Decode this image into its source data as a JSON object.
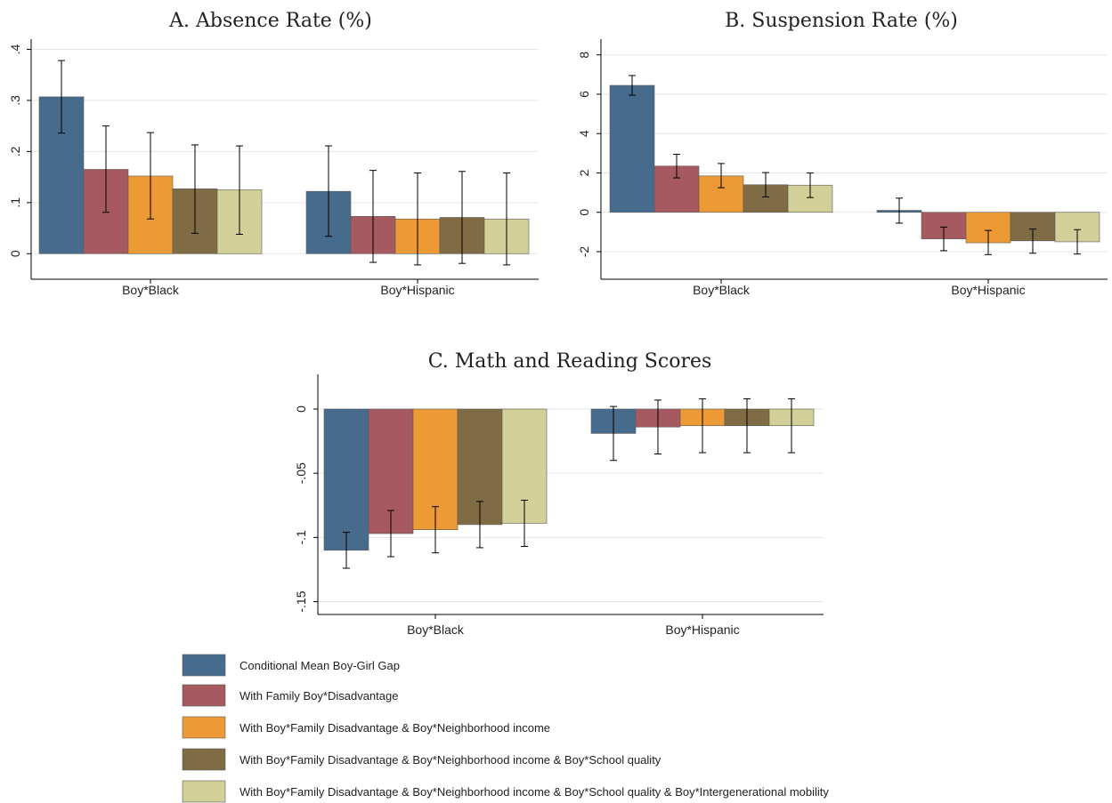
{
  "colors": {
    "series": [
      "#476b8d",
      "#a65a60",
      "#eb9a35",
      "#7f6c45",
      "#d3cf98"
    ],
    "grid": "#e6e6e6",
    "axis": "#000000",
    "errorbar": "#000000"
  },
  "legend": {
    "items": [
      "Conditional Mean Boy-Girl Gap",
      "With Family Boy*Disadvantage",
      "With Boy*Family Disadvantage & Boy*Neighborhood income",
      "With Boy*Family Disadvantage & Boy*Neighborhood income & Boy*School quality",
      "With Boy*Family Disadvantage & Boy*Neighborhood income & Boy*School quality & Boy*Intergenerational mobility"
    ]
  },
  "chart_data": [
    {
      "type": "bar",
      "title": "A. Absence Rate (%)",
      "categories": [
        "Boy*Black",
        "Boy*Hispanic"
      ],
      "ylim": [
        -0.05,
        0.42
      ],
      "yticks": [
        0,
        0.1,
        0.2,
        0.3,
        0.4
      ],
      "yticklabels": [
        "0",
        ".1",
        ".2",
        ".3",
        ".4"
      ],
      "grid": true,
      "series": [
        {
          "values": [
            0.307,
            0.122
          ],
          "ci": [
            [
              0.236,
              0.378
            ],
            [
              0.034,
              0.211
            ]
          ]
        },
        {
          "values": [
            0.165,
            0.073
          ],
          "ci": [
            [
              0.081,
              0.25
            ],
            [
              -0.017,
              0.163
            ]
          ]
        },
        {
          "values": [
            0.152,
            0.068
          ],
          "ci": [
            [
              0.068,
              0.237
            ],
            [
              -0.022,
              0.158
            ]
          ]
        },
        {
          "values": [
            0.127,
            0.071
          ],
          "ci": [
            [
              0.04,
              0.213
            ],
            [
              -0.019,
              0.161
            ]
          ]
        },
        {
          "values": [
            0.125,
            0.068
          ],
          "ci": [
            [
              0.038,
              0.211
            ],
            [
              -0.022,
              0.158
            ]
          ]
        }
      ]
    },
    {
      "type": "bar",
      "title": "B. Suspension Rate (%)",
      "categories": [
        "Boy*Black",
        "Boy*Hispanic"
      ],
      "ylim": [
        -3.4,
        8.8
      ],
      "yticks": [
        -2,
        0,
        2,
        4,
        6,
        8
      ],
      "yticklabels": [
        "-2",
        "0",
        "2",
        "4",
        "6",
        "8"
      ],
      "grid": true,
      "series": [
        {
          "values": [
            6.45,
            0.1
          ],
          "ci": [
            [
              5.95,
              6.95
            ],
            [
              -0.55,
              0.72
            ]
          ]
        },
        {
          "values": [
            2.35,
            -1.35
          ],
          "ci": [
            [
              1.75,
              2.95
            ],
            [
              -1.95,
              -0.75
            ]
          ]
        },
        {
          "values": [
            1.85,
            -1.55
          ],
          "ci": [
            [
              1.25,
              2.48
            ],
            [
              -2.15,
              -0.92
            ]
          ]
        },
        {
          "values": [
            1.4,
            -1.45
          ],
          "ci": [
            [
              0.78,
              2.02
            ],
            [
              -2.08,
              -0.85
            ]
          ]
        },
        {
          "values": [
            1.38,
            -1.5
          ],
          "ci": [
            [
              0.75,
              2.0
            ],
            [
              -2.12,
              -0.88
            ]
          ]
        }
      ]
    },
    {
      "type": "bar",
      "title": "C. Math and Reading Scores",
      "categories": [
        "Boy*Black",
        "Boy*Hispanic"
      ],
      "ylim": [
        -0.16,
        0.027
      ],
      "yticks": [
        0,
        -0.05,
        -0.1,
        -0.15
      ],
      "yticklabels": [
        "0",
        "-.05",
        "-.1",
        "-.15"
      ],
      "grid": true,
      "series": [
        {
          "values": [
            -0.11,
            -0.019
          ],
          "ci": [
            [
              -0.124,
              -0.096
            ],
            [
              -0.04,
              0.002
            ]
          ]
        },
        {
          "values": [
            -0.097,
            -0.014
          ],
          "ci": [
            [
              -0.115,
              -0.079
            ],
            [
              -0.035,
              0.007
            ]
          ]
        },
        {
          "values": [
            -0.094,
            -0.013
          ],
          "ci": [
            [
              -0.112,
              -0.076
            ],
            [
              -0.034,
              0.008
            ]
          ]
        },
        {
          "values": [
            -0.09,
            -0.013
          ],
          "ci": [
            [
              -0.108,
              -0.072
            ],
            [
              -0.034,
              0.008
            ]
          ]
        },
        {
          "values": [
            -0.089,
            -0.013
          ],
          "ci": [
            [
              -0.107,
              -0.071
            ],
            [
              -0.034,
              0.008
            ]
          ]
        }
      ]
    }
  ]
}
